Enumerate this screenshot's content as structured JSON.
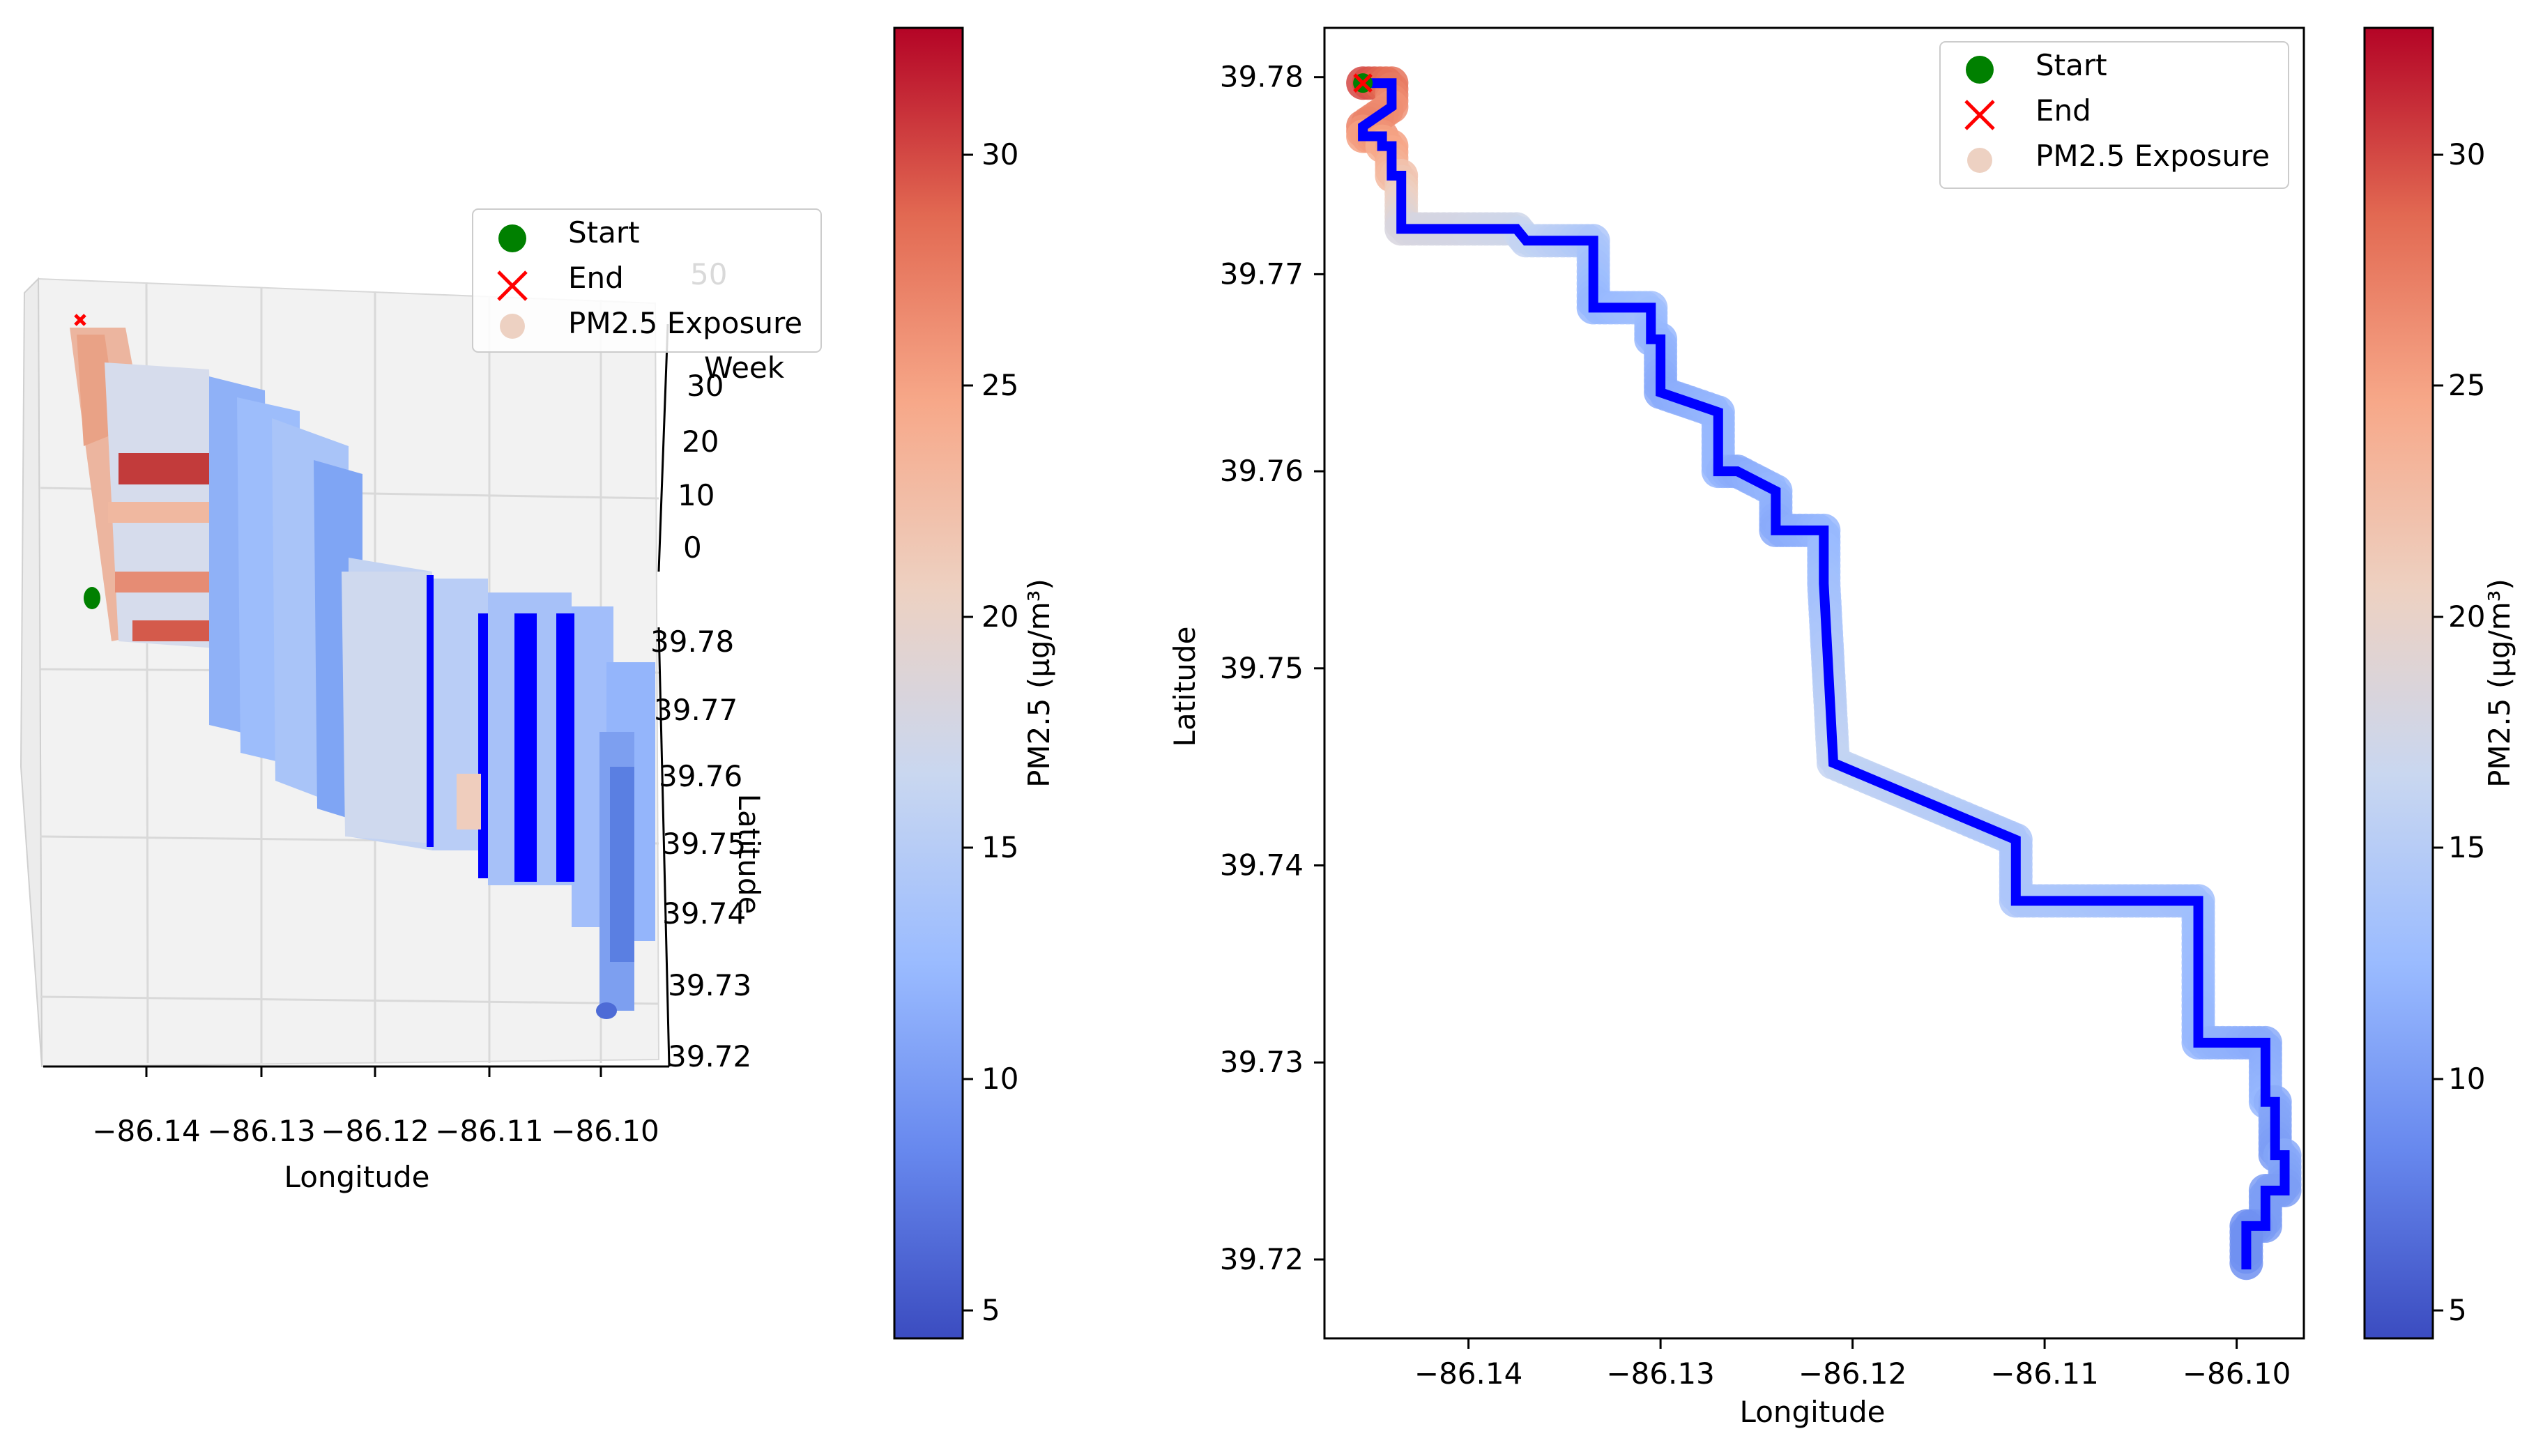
{
  "colors": {
    "route": "#0000ff",
    "start": "#008000",
    "end": "#ff0000",
    "cmap": [
      "#3b4cc0",
      "#6788ee",
      "#9abbff",
      "#c9d7f0",
      "#edd1c2",
      "#f7a889",
      "#e26952",
      "#b40426"
    ]
  },
  "chart_data": [
    {
      "id": "panel-3d",
      "type": "scatter3d",
      "xlabel": "Longitude",
      "ylabel": "Latitude",
      "zlabel": "Week",
      "x_ticks": [
        "−86.14",
        "−86.13",
        "−86.12",
        "−86.11",
        "−86.10"
      ],
      "y_ticks": [
        "39.78",
        "39.77",
        "39.76",
        "39.75",
        "39.74",
        "39.73",
        "39.72"
      ],
      "z_ticks": [
        "50",
        "30",
        "20",
        "10",
        "0"
      ],
      "legend": [
        "Start",
        "End",
        "PM2.5 Exposure"
      ],
      "legend_position": "top-right",
      "colorbar": {
        "label": "PM2.5 (µg/m³)",
        "range": [
          4.2,
          32.7
        ],
        "ticks": [
          "30",
          "25",
          "20",
          "15",
          "10",
          "5"
        ]
      }
    },
    {
      "id": "panel-2d",
      "type": "scatter",
      "xlabel": "Longitude",
      "ylabel": "Latitude",
      "xlim": [
        -86.1475,
        -86.0965
      ],
      "ylim": [
        39.716,
        39.7825
      ],
      "x_ticks": [
        -86.14,
        -86.13,
        -86.12,
        -86.11,
        -86.1
      ],
      "x_tick_labels": [
        "−86.14",
        "−86.13",
        "−86.12",
        "−86.11",
        "−86.10"
      ],
      "y_ticks": [
        39.78,
        39.77,
        39.76,
        39.75,
        39.74,
        39.73,
        39.72
      ],
      "y_tick_labels": [
        "39.78",
        "39.77",
        "39.76",
        "39.75",
        "39.74",
        "39.73",
        "39.72"
      ],
      "legend": [
        "Start",
        "End",
        "PM2.5 Exposure"
      ],
      "legend_position": "top-right",
      "start": [
        -86.1455,
        39.7797
      ],
      "end": [
        -86.1455,
        39.7797
      ],
      "route": {
        "lon": [
          -86.1455,
          -86.144,
          -86.144,
          -86.1455,
          -86.1455,
          -86.1445,
          -86.1445,
          -86.144,
          -86.144,
          -86.1435,
          -86.1435,
          -86.1375,
          -86.137,
          -86.1335,
          -86.1335,
          -86.1305,
          -86.1305,
          -86.13,
          -86.13,
          -86.127,
          -86.127,
          -86.126,
          -86.124,
          -86.124,
          -86.1215,
          -86.1215,
          -86.121,
          -86.1115,
          -86.1115,
          -86.102,
          -86.102,
          -86.0985,
          -86.0985,
          -86.098,
          -86.098,
          -86.0975,
          -86.0975,
          -86.0985,
          -86.0985,
          -86.0995,
          -86.0995
        ],
        "lat": [
          39.7797,
          39.7797,
          39.7785,
          39.7775,
          39.777,
          39.777,
          39.7765,
          39.7765,
          39.775,
          39.775,
          39.7723,
          39.7723,
          39.7717,
          39.7717,
          39.7683,
          39.7683,
          39.7667,
          39.7667,
          39.764,
          39.763,
          39.76,
          39.76,
          39.759,
          39.757,
          39.757,
          39.7543,
          39.7452,
          39.7413,
          39.7382,
          39.7382,
          39.731,
          39.731,
          39.728,
          39.728,
          39.7253,
          39.7253,
          39.7235,
          39.7235,
          39.7217,
          39.7217,
          39.7195
        ],
        "pm25": [
          30,
          28,
          26,
          27,
          25,
          26,
          24,
          25,
          23,
          22,
          18,
          17,
          16,
          14,
          12,
          13,
          12,
          12,
          11,
          12,
          12,
          11,
          12,
          11,
          12,
          13,
          16,
          14,
          14,
          13,
          12,
          11,
          12,
          11,
          10,
          11,
          10,
          10,
          10,
          9,
          9
        ]
      },
      "colorbar": {
        "label": "PM2.5 (µg/m³)",
        "range": [
          4.2,
          32.7
        ],
        "ticks": [
          "30",
          "25",
          "20",
          "15",
          "10",
          "5"
        ]
      }
    }
  ]
}
